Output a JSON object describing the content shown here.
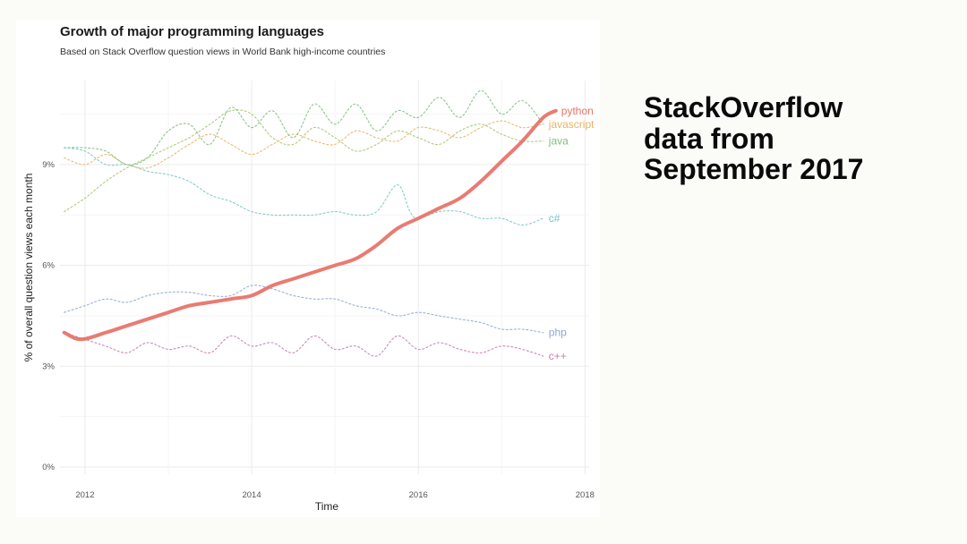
{
  "slide": {
    "text": "StackOverflow\ndata from\nSeptember 2017"
  },
  "chart_data": {
    "type": "line",
    "title": "Growth of major programming languages",
    "subtitle": "Based on Stack Overflow question views in World Bank high-income countries",
    "xlabel": "Time",
    "ylabel": "% of overall question views each month",
    "xlim": [
      2011.7,
      2018.05
    ],
    "ylim": [
      0,
      11.5
    ],
    "x_ticks": [
      2012,
      2014,
      2016,
      2018
    ],
    "x_tick_labels": [
      "2012",
      "2014",
      "2016",
      "2018"
    ],
    "y_ticks": [
      0,
      3,
      6,
      9
    ],
    "y_tick_labels": [
      "0%",
      "3%",
      "6%",
      "9%"
    ],
    "grid": true,
    "series": [
      {
        "name": "java",
        "color": "#a6c76b",
        "emphasis": false,
        "dashed": true,
        "points": [
          [
            2011.75,
            7.6
          ],
          [
            2012.0,
            8.0
          ],
          [
            2012.25,
            8.5
          ],
          [
            2012.5,
            8.9
          ],
          [
            2012.75,
            9.2
          ],
          [
            2013.0,
            9.5
          ],
          [
            2013.25,
            9.8
          ],
          [
            2013.5,
            10.2
          ],
          [
            2013.75,
            10.6
          ],
          [
            2014.0,
            10.5
          ],
          [
            2014.25,
            9.8
          ],
          [
            2014.5,
            9.6
          ],
          [
            2014.75,
            10.1
          ],
          [
            2015.0,
            9.8
          ],
          [
            2015.25,
            9.4
          ],
          [
            2015.5,
            9.6
          ],
          [
            2015.75,
            10.0
          ],
          [
            2016.0,
            9.8
          ],
          [
            2016.25,
            9.6
          ],
          [
            2016.5,
            10.0
          ],
          [
            2016.75,
            10.2
          ],
          [
            2017.0,
            9.9
          ],
          [
            2017.25,
            9.7
          ],
          [
            2017.5,
            9.7
          ]
        ]
      },
      {
        "name": "javascript",
        "color": "#e8b466",
        "emphasis": false,
        "dashed": true,
        "points": [
          [
            2011.75,
            9.2
          ],
          [
            2012.0,
            9.0
          ],
          [
            2012.25,
            9.3
          ],
          [
            2012.5,
            9.0
          ],
          [
            2012.75,
            8.9
          ],
          [
            2013.0,
            9.2
          ],
          [
            2013.25,
            9.6
          ],
          [
            2013.5,
            9.9
          ],
          [
            2013.75,
            9.6
          ],
          [
            2014.0,
            9.3
          ],
          [
            2014.25,
            9.6
          ],
          [
            2014.5,
            9.9
          ],
          [
            2014.75,
            9.7
          ],
          [
            2015.0,
            9.6
          ],
          [
            2015.25,
            10.0
          ],
          [
            2015.5,
            9.8
          ],
          [
            2015.75,
            9.7
          ],
          [
            2016.0,
            10.1
          ],
          [
            2016.25,
            10.0
          ],
          [
            2016.5,
            9.8
          ],
          [
            2016.75,
            10.1
          ],
          [
            2017.0,
            10.3
          ],
          [
            2017.25,
            10.1
          ],
          [
            2017.5,
            10.2
          ]
        ]
      },
      {
        "name": "java (seasonal)",
        "color": "#7fbf7f",
        "emphasis": false,
        "dashed": true,
        "label": false,
        "points": [
          [
            2011.75,
            9.5
          ],
          [
            2012.0,
            9.5
          ],
          [
            2012.25,
            9.4
          ],
          [
            2012.5,
            9.0
          ],
          [
            2012.75,
            9.2
          ],
          [
            2013.0,
            10.0
          ],
          [
            2013.25,
            10.2
          ],
          [
            2013.5,
            9.6
          ],
          [
            2013.75,
            10.7
          ],
          [
            2014.0,
            10.1
          ],
          [
            2014.25,
            10.6
          ],
          [
            2014.5,
            9.8
          ],
          [
            2014.75,
            10.8
          ],
          [
            2015.0,
            10.2
          ],
          [
            2015.25,
            10.8
          ],
          [
            2015.5,
            10.0
          ],
          [
            2015.75,
            10.6
          ],
          [
            2016.0,
            10.4
          ],
          [
            2016.25,
            11.0
          ],
          [
            2016.5,
            10.4
          ],
          [
            2016.75,
            11.2
          ],
          [
            2017.0,
            10.5
          ],
          [
            2017.25,
            10.9
          ],
          [
            2017.5,
            10.2
          ]
        ]
      },
      {
        "name": "c#",
        "color": "#79c7c4",
        "emphasis": false,
        "dashed": true,
        "points": [
          [
            2011.75,
            9.5
          ],
          [
            2012.0,
            9.4
          ],
          [
            2012.25,
            9.0
          ],
          [
            2012.5,
            9.0
          ],
          [
            2012.75,
            8.8
          ],
          [
            2013.0,
            8.7
          ],
          [
            2013.25,
            8.5
          ],
          [
            2013.5,
            8.1
          ],
          [
            2013.75,
            7.9
          ],
          [
            2014.0,
            7.6
          ],
          [
            2014.25,
            7.5
          ],
          [
            2014.5,
            7.5
          ],
          [
            2014.75,
            7.5
          ],
          [
            2015.0,
            7.6
          ],
          [
            2015.25,
            7.5
          ],
          [
            2015.5,
            7.6
          ],
          [
            2015.75,
            8.4
          ],
          [
            2015.9,
            7.6
          ],
          [
            2016.0,
            7.4
          ],
          [
            2016.25,
            7.6
          ],
          [
            2016.5,
            7.6
          ],
          [
            2016.75,
            7.4
          ],
          [
            2017.0,
            7.4
          ],
          [
            2017.25,
            7.2
          ],
          [
            2017.5,
            7.4
          ]
        ]
      },
      {
        "name": "python",
        "color": "#e8746a",
        "emphasis": true,
        "dashed": false,
        "points": [
          [
            2011.75,
            4.0
          ],
          [
            2011.95,
            3.8
          ],
          [
            2012.25,
            4.0
          ],
          [
            2012.5,
            4.2
          ],
          [
            2012.75,
            4.4
          ],
          [
            2013.0,
            4.6
          ],
          [
            2013.25,
            4.8
          ],
          [
            2013.5,
            4.9
          ],
          [
            2013.75,
            5.0
          ],
          [
            2014.0,
            5.1
          ],
          [
            2014.25,
            5.4
          ],
          [
            2014.5,
            5.6
          ],
          [
            2014.75,
            5.8
          ],
          [
            2015.0,
            6.0
          ],
          [
            2015.25,
            6.2
          ],
          [
            2015.5,
            6.6
          ],
          [
            2015.75,
            7.1
          ],
          [
            2016.0,
            7.4
          ],
          [
            2016.25,
            7.7
          ],
          [
            2016.5,
            8.0
          ],
          [
            2016.75,
            8.5
          ],
          [
            2017.0,
            9.1
          ],
          [
            2017.25,
            9.7
          ],
          [
            2017.5,
            10.4
          ],
          [
            2017.65,
            10.6
          ]
        ]
      },
      {
        "name": "php",
        "color": "#8fa9d1",
        "emphasis": false,
        "dashed": true,
        "points": [
          [
            2011.75,
            4.6
          ],
          [
            2012.0,
            4.8
          ],
          [
            2012.25,
            5.0
          ],
          [
            2012.5,
            4.9
          ],
          [
            2012.75,
            5.1
          ],
          [
            2013.0,
            5.2
          ],
          [
            2013.25,
            5.2
          ],
          [
            2013.5,
            5.1
          ],
          [
            2013.75,
            5.1
          ],
          [
            2014.0,
            5.4
          ],
          [
            2014.25,
            5.3
          ],
          [
            2014.5,
            5.1
          ],
          [
            2014.75,
            5.0
          ],
          [
            2015.0,
            5.0
          ],
          [
            2015.25,
            4.8
          ],
          [
            2015.5,
            4.7
          ],
          [
            2015.75,
            4.5
          ],
          [
            2016.0,
            4.6
          ],
          [
            2016.25,
            4.5
          ],
          [
            2016.5,
            4.4
          ],
          [
            2016.75,
            4.3
          ],
          [
            2017.0,
            4.1
          ],
          [
            2017.25,
            4.1
          ],
          [
            2017.5,
            4.0
          ]
        ]
      },
      {
        "name": "c++",
        "color": "#c37fb1",
        "emphasis": false,
        "dashed": true,
        "points": [
          [
            2011.75,
            4.0
          ],
          [
            2012.0,
            3.8
          ],
          [
            2012.25,
            3.6
          ],
          [
            2012.5,
            3.4
          ],
          [
            2012.75,
            3.7
          ],
          [
            2013.0,
            3.5
          ],
          [
            2013.25,
            3.6
          ],
          [
            2013.5,
            3.4
          ],
          [
            2013.75,
            3.9
          ],
          [
            2014.0,
            3.6
          ],
          [
            2014.25,
            3.7
          ],
          [
            2014.5,
            3.4
          ],
          [
            2014.75,
            3.9
          ],
          [
            2015.0,
            3.5
          ],
          [
            2015.25,
            3.6
          ],
          [
            2015.5,
            3.3
          ],
          [
            2015.75,
            3.9
          ],
          [
            2016.0,
            3.5
          ],
          [
            2016.25,
            3.7
          ],
          [
            2016.5,
            3.5
          ],
          [
            2016.75,
            3.4
          ],
          [
            2017.0,
            3.6
          ],
          [
            2017.25,
            3.5
          ],
          [
            2017.5,
            3.3
          ]
        ]
      }
    ],
    "series_labels": [
      {
        "text": "python",
        "series": "python",
        "color": "#e8746a"
      },
      {
        "text": "javascript",
        "series": "javascript",
        "color": "#e8b466"
      },
      {
        "text": "java",
        "series": "java",
        "color": "#7fbf7f"
      },
      {
        "text": "c#",
        "series": "c#",
        "color": "#79c7c4"
      },
      {
        "text": "php",
        "series": "php",
        "color": "#8fa9d1"
      },
      {
        "text": "c++",
        "series": "c++",
        "color": "#c37fb1"
      }
    ]
  }
}
